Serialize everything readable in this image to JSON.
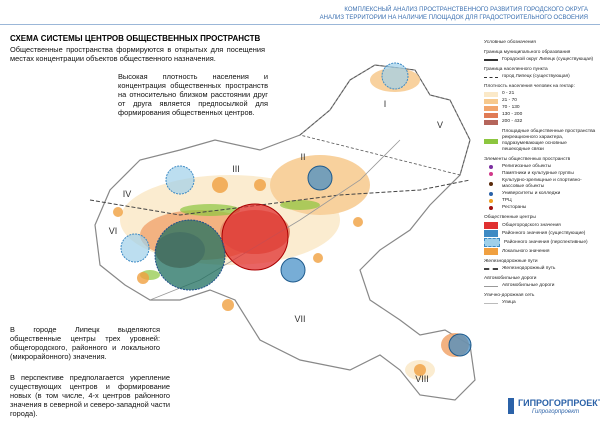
{
  "header": {
    "line1": "КОМПЛЕКСНЫЙ АНАЛИЗ ПРОСТРАНСТВЕННОГО РАЗВИТИЯ ГОРОДСКОГО ОКРУГА",
    "line2": "АНАЛИЗ ТЕРРИТОРИИ НА НАЛИЧИЕ ПЛОЩАДОК ДЛЯ ГРАДОСТРОИТЕЛЬНОГО ОСВОЕНИЯ"
  },
  "title": "СХЕМА СИСТЕМЫ ЦЕНТРОВ ОБЩЕСТВЕННЫХ ПРОСТРАНСТВ",
  "intro": "Общественные пространства формируются в открытых для посещения местах концентрации объектов общественного назначения.",
  "note": "Высокая плотность населения и концентрация общественных пространств на относительно близком расстоянии друг от друга является предпосылкой для формирования общественных центров.",
  "bottom": {
    "p1": "В городе Липецк выделяются общественные центры трех уровней: общегородского, районного и локального (микрорайонного) значения.",
    "p2": "В перспективе предполагается укрепление существующих центров и формирование новых (в том числе, 4-х центров районного значения в северной и северо-западной части города)."
  },
  "map": {
    "labels": [
      "I",
      "II",
      "III",
      "IV",
      "V",
      "VI",
      "VII",
      "VIII"
    ]
  },
  "legend": {
    "title": "Условные обозначения",
    "boundary_mo": {
      "title": "Граница муниципального образования",
      "item": "Городской округ Липецк (существующая)"
    },
    "boundary_np": {
      "title": "Граница населенного пункта",
      "item": "город Липецк (существующая)"
    },
    "density": {
      "title": "Плотность населения человек на гектар:",
      "items": [
        "0 - 21",
        "21 - 70",
        "70 - 130",
        "130 - 200",
        "200 - 432"
      ]
    },
    "green": "Площадные общественные пространства рекреационного характера, подразумевающие основные пешеходные связи",
    "elements": {
      "title": "Элементы общественных пространств",
      "items": [
        "Религиозные объекты",
        "Памятники и культурные группы",
        "Культурно-зрелищные и спортивно-массовые объекты",
        "Университеты и колледжи",
        "ТРЦ",
        "Рестораны"
      ]
    },
    "centers": {
      "title": "Общественные центры",
      "items": [
        "Общегородского значения",
        "Районного значения (существующие)",
        "Районного значения (перспективные)",
        "Локального значения"
      ]
    },
    "rail": {
      "title": "Железнодорожные пути",
      "item": "Железнодорожный путь"
    },
    "roads": {
      "title": "Автомобильные дороги",
      "item": "Автомобильные дороги"
    },
    "streets": {
      "title": "Улично-дорожная сеть",
      "item": "Улица"
    }
  },
  "logo": {
    "name": "ГИПРОГОРПРОЕКТ",
    "sub": "Гипрогорпроект"
  }
}
